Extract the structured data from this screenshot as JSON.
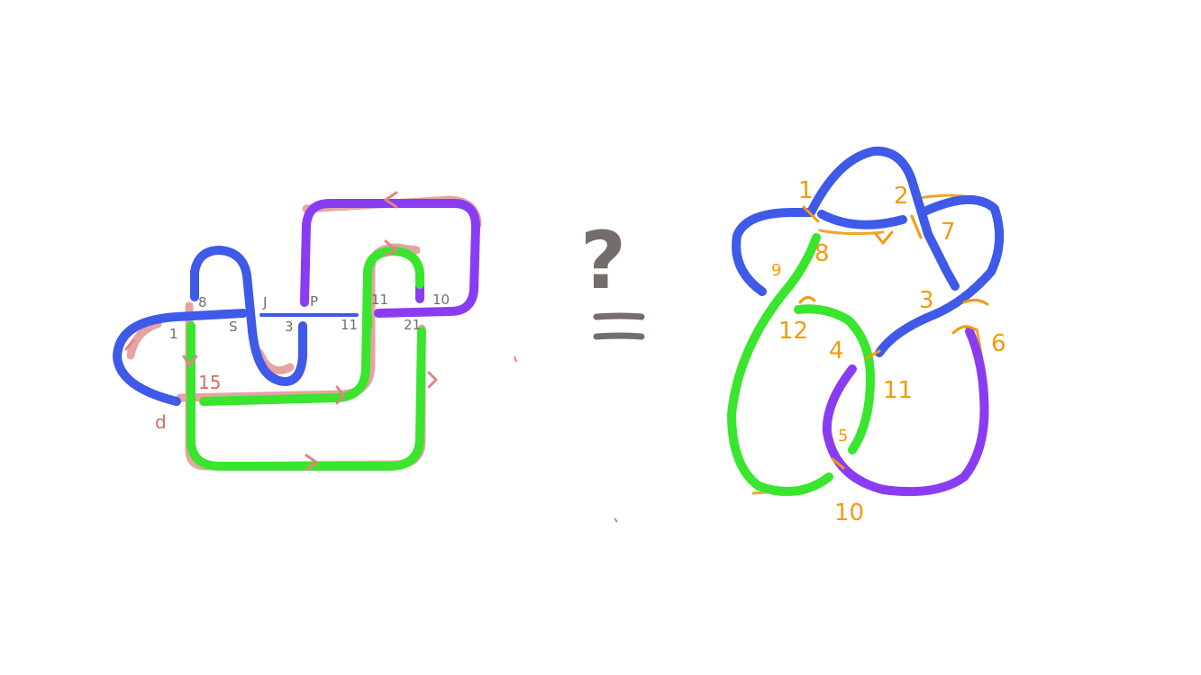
{
  "colors": {
    "blue": "#3f59e8",
    "purple": "#8a3cf2",
    "green": "#3ae52d",
    "red_shadow": "#e08585",
    "orange": "#f39a0f",
    "gray_text": "#6f6f6f",
    "question_mark": "#756c6c"
  },
  "left_diagram": {
    "crossing_labels": [
      "8",
      "J",
      "P",
      "11",
      "10",
      "1",
      "S",
      "3",
      "11",
      "21"
    ],
    "red_labels": [
      "15",
      "d"
    ]
  },
  "middle": {
    "question": "?",
    "equals": "="
  },
  "right_diagram": {
    "crossing_labels": [
      "1",
      "2",
      "7",
      "8",
      "9",
      "3",
      "12",
      "6",
      "4",
      "11",
      "5",
      "10"
    ]
  }
}
